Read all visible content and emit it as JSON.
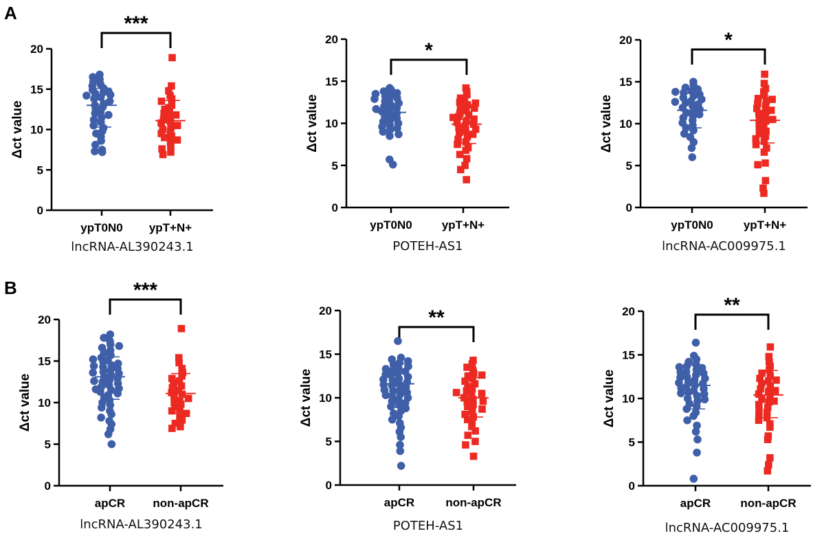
{
  "panels": [
    {
      "letter": "A"
    },
    {
      "letter": "B"
    }
  ],
  "colors": {
    "group1": "#3f5fa8",
    "group2": "#ec2a22",
    "axis": "#000000"
  },
  "chart_data": [
    {
      "type": "scatter",
      "panel": "A",
      "subtitle": "lncRNA-AL390243.1",
      "ylabel": "Δct value",
      "ylim": [
        0,
        20
      ],
      "yticks": [
        0,
        5,
        10,
        15,
        20
      ],
      "categories": [
        "ypT0N0",
        "ypT+N+"
      ],
      "significance": "***",
      "series": [
        {
          "name": "ypT0N0",
          "marker": "circle",
          "mean": 13.0,
          "sd_low": 10.3,
          "sd_high": 15.1,
          "values": [
            16.8,
            16.5,
            16.2,
            15.9,
            15.6,
            15.4,
            15.1,
            14.9,
            14.7,
            14.6,
            14.5,
            14.3,
            14.2,
            14.0,
            13.8,
            13.5,
            13.2,
            13.0,
            12.8,
            12.5,
            12.2,
            12.0,
            11.8,
            11.5,
            11.2,
            10.9,
            10.5,
            10.2,
            9.8,
            9.5,
            9.1,
            8.6,
            8.1,
            7.5,
            7.2,
            7.3
          ]
        },
        {
          "name": "ypT+N+",
          "marker": "square",
          "mean": 11.1,
          "sd_low": 8.7,
          "sd_high": 13.6,
          "values": [
            18.9,
            15.4,
            14.8,
            14.2,
            13.8,
            13.5,
            13.0,
            12.7,
            12.5,
            12.2,
            12.0,
            11.8,
            11.5,
            11.2,
            11.0,
            10.8,
            10.5,
            10.3,
            10.0,
            9.8,
            9.5,
            9.2,
            9.0,
            8.7,
            8.4,
            8.0,
            7.6,
            7.2,
            6.9
          ]
        }
      ]
    },
    {
      "type": "scatter",
      "panel": "A",
      "subtitle": "POTEH-AS1",
      "ylabel": "Δct value",
      "ylim": [
        0,
        20
      ],
      "yticks": [
        0,
        5,
        10,
        15,
        20
      ],
      "categories": [
        "ypT0N0",
        "ypT+N+"
      ],
      "significance": "*",
      "series": [
        {
          "name": "ypT0N0",
          "marker": "circle",
          "mean": 11.3,
          "sd_low": 9.2,
          "sd_high": 13.5,
          "values": [
            14.2,
            14.0,
            13.8,
            13.6,
            13.4,
            13.2,
            13.0,
            12.8,
            12.6,
            12.4,
            12.2,
            12.0,
            11.8,
            11.6,
            11.4,
            11.2,
            11.0,
            10.8,
            10.6,
            10.4,
            10.2,
            10.0,
            9.8,
            9.6,
            9.4,
            9.2,
            9.0,
            8.7,
            8.5,
            5.7,
            5.1,
            13.5,
            12.9,
            11.7
          ]
        },
        {
          "name": "ypT+N+",
          "marker": "square",
          "mean": 9.9,
          "sd_low": 7.6,
          "sd_high": 12.2,
          "values": [
            14.2,
            13.8,
            13.4,
            13.0,
            12.7,
            12.5,
            12.2,
            12.0,
            11.8,
            11.5,
            11.2,
            11.0,
            10.8,
            10.5,
            10.3,
            10.1,
            9.9,
            9.7,
            9.5,
            9.3,
            9.1,
            8.9,
            8.7,
            8.4,
            8.1,
            7.8,
            7.5,
            7.1,
            6.8,
            6.3,
            5.8,
            5.0,
            4.5,
            3.3,
            12.4,
            10.7
          ]
        }
      ]
    },
    {
      "type": "scatter",
      "panel": "A",
      "subtitle": "lncRNA-AC009975.1",
      "ylabel": "Δct value",
      "ylim": [
        0,
        20
      ],
      "yticks": [
        0,
        5,
        10,
        15,
        20
      ],
      "categories": [
        "ypT0N0",
        "ypT+N+"
      ],
      "significance": "*",
      "series": [
        {
          "name": "ypT0N0",
          "marker": "circle",
          "mean": 11.6,
          "sd_low": 9.5,
          "sd_high": 13.6,
          "values": [
            15.0,
            14.6,
            14.3,
            14.1,
            13.9,
            13.7,
            13.5,
            13.3,
            13.1,
            12.9,
            12.7,
            12.5,
            12.3,
            12.1,
            11.9,
            11.7,
            11.5,
            11.3,
            11.1,
            10.9,
            10.7,
            10.4,
            10.1,
            9.8,
            9.5,
            9.2,
            8.8,
            8.4,
            7.8,
            7.1,
            6.0,
            13.8,
            12.6
          ]
        },
        {
          "name": "ypT+N+",
          "marker": "square",
          "mean": 10.4,
          "sd_low": 7.7,
          "sd_high": 13.1,
          "values": [
            15.9,
            14.8,
            14.2,
            13.8,
            13.4,
            13.0,
            12.7,
            12.4,
            12.1,
            11.8,
            11.5,
            11.2,
            10.9,
            10.6,
            10.3,
            10.0,
            9.7,
            9.4,
            9.1,
            8.8,
            8.5,
            8.2,
            7.9,
            7.5,
            7.1,
            6.6,
            5.3,
            5.1,
            3.2,
            2.3,
            1.7,
            12.9,
            11.6,
            10.5
          ]
        }
      ]
    },
    {
      "type": "scatter",
      "panel": "B",
      "subtitle": "lncRNA-AL390243.1",
      "ylabel": "Δct value",
      "ylim": [
        0,
        20
      ],
      "yticks": [
        0,
        5,
        10,
        15,
        20
      ],
      "categories": [
        "apCR",
        "non-apCR"
      ],
      "significance": "***",
      "series": [
        {
          "name": "apCR",
          "marker": "circle",
          "mean": 13.1,
          "sd_low": 10.4,
          "sd_high": 15.5,
          "values": [
            18.2,
            17.8,
            17.4,
            17.0,
            16.6,
            16.3,
            16.0,
            15.7,
            15.4,
            15.1,
            14.9,
            14.7,
            14.5,
            14.3,
            14.1,
            13.9,
            13.7,
            13.5,
            13.3,
            13.1,
            12.9,
            12.7,
            12.5,
            12.3,
            12.1,
            11.9,
            11.7,
            11.5,
            11.3,
            11.1,
            10.9,
            10.6,
            10.3,
            10.0,
            9.7,
            9.4,
            9.0,
            8.6,
            8.2,
            7.8,
            7.4,
            6.8,
            6.2,
            5.0,
            16.8,
            15.2,
            14.4,
            13.6,
            12.6,
            11.6
          ]
        },
        {
          "name": "non-apCR",
          "marker": "square",
          "mean": 11.1,
          "sd_low": 8.8,
          "sd_high": 13.5,
          "values": [
            18.9,
            15.4,
            14.8,
            14.1,
            13.6,
            13.2,
            12.9,
            12.6,
            12.3,
            12.0,
            11.8,
            11.5,
            11.2,
            11.0,
            10.8,
            10.5,
            10.2,
            10.0,
            9.8,
            9.5,
            9.2,
            9.0,
            8.7,
            8.3,
            7.9,
            7.5,
            7.1,
            6.9
          ]
        }
      ]
    },
    {
      "type": "scatter",
      "panel": "B",
      "subtitle": "POTEH-AS1",
      "ylabel": "Δct value",
      "ylim": [
        0,
        20
      ],
      "yticks": [
        0,
        5,
        10,
        15,
        20
      ],
      "categories": [
        "apCR",
        "non-apCR"
      ],
      "significance": "**",
      "series": [
        {
          "name": "apCR",
          "marker": "circle",
          "mean": 11.6,
          "sd_low": 8.9,
          "sd_high": 13.9,
          "values": [
            16.5,
            14.6,
            14.4,
            14.2,
            14.0,
            13.8,
            13.6,
            13.4,
            13.2,
            13.0,
            12.8,
            12.6,
            12.4,
            12.2,
            12.0,
            11.8,
            11.6,
            11.4,
            11.2,
            11.0,
            10.8,
            10.6,
            10.4,
            10.2,
            10.0,
            9.8,
            9.6,
            9.4,
            9.2,
            9.0,
            8.8,
            8.5,
            8.2,
            7.9,
            7.5,
            7.1,
            6.6,
            6.1,
            5.5,
            4.6,
            3.9,
            2.2,
            13.3,
            12.7,
            12.1,
            11.5,
            10.9,
            10.3
          ]
        },
        {
          "name": "non-apCR",
          "marker": "square",
          "mean": 10.0,
          "sd_low": 7.8,
          "sd_high": 12.3,
          "values": [
            14.3,
            13.9,
            13.5,
            13.1,
            12.8,
            12.5,
            12.2,
            11.9,
            11.6,
            11.3,
            11.0,
            10.8,
            10.5,
            10.2,
            10.0,
            9.8,
            9.5,
            9.2,
            9.0,
            8.7,
            8.4,
            8.1,
            7.8,
            7.5,
            7.1,
            6.7,
            6.2,
            5.7,
            5.0,
            4.6,
            3.3,
            12.6,
            10.6,
            9.6
          ]
        }
      ]
    },
    {
      "type": "scatter",
      "panel": "B",
      "subtitle": "lncRNA-AC009975.1",
      "ylabel": "Δct value",
      "ylim": [
        0,
        20
      ],
      "yticks": [
        0,
        5,
        10,
        15,
        20
      ],
      "categories": [
        "apCR",
        "non-apCR"
      ],
      "significance": "**",
      "series": [
        {
          "name": "apCR",
          "marker": "circle",
          "mean": 11.5,
          "sd_low": 8.8,
          "sd_high": 13.8,
          "values": [
            16.4,
            14.9,
            14.5,
            14.2,
            13.9,
            13.7,
            13.5,
            13.3,
            13.1,
            12.9,
            12.7,
            12.5,
            12.3,
            12.1,
            11.9,
            11.7,
            11.5,
            11.3,
            11.1,
            10.9,
            10.7,
            10.5,
            10.3,
            10.0,
            9.7,
            9.4,
            9.1,
            8.8,
            8.4,
            8.0,
            7.5,
            6.9,
            6.2,
            5.3,
            3.8,
            0.8,
            13.6,
            13.0,
            12.4,
            11.8,
            11.2,
            10.6,
            9.9
          ]
        },
        {
          "name": "non-apCR",
          "marker": "square",
          "mean": 10.4,
          "sd_low": 7.8,
          "sd_high": 13.2,
          "values": [
            15.9,
            14.8,
            14.2,
            13.7,
            13.3,
            12.9,
            12.6,
            12.3,
            12.0,
            11.7,
            11.4,
            11.1,
            10.8,
            10.5,
            10.2,
            9.9,
            9.6,
            9.3,
            9.0,
            8.7,
            8.4,
            8.1,
            7.8,
            7.5,
            7.1,
            6.7,
            5.7,
            5.3,
            3.2,
            2.4,
            1.7,
            12.1,
            10.9,
            9.7
          ]
        }
      ]
    }
  ]
}
